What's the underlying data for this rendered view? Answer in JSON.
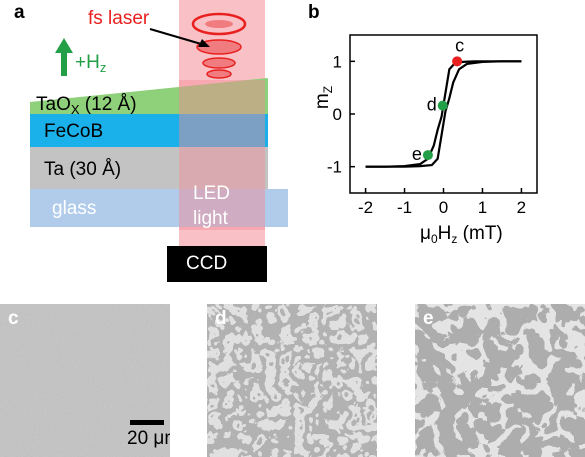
{
  "panel_a": {
    "letter": "a",
    "laser_label": "fs laser",
    "field_label_main": "+H",
    "field_label_sub": "z",
    "layers": [
      {
        "label_main": "TaO",
        "label_sub": "X",
        "label_rest": " (12 Å)",
        "color": "#86cc70"
      },
      {
        "label_main": "FeCoB",
        "label_sub": "",
        "label_rest": "",
        "color": "#1ab0ea"
      },
      {
        "label_main": "Ta (30 Å)",
        "label_sub": "",
        "label_rest": "",
        "color": "#c3c3c3"
      },
      {
        "label_main": "glass",
        "label_sub": "",
        "label_rest": "",
        "color": "#a8c6e8"
      }
    ],
    "light_label_line1": "LED",
    "light_label_line2": "light",
    "detector_label": "CCD",
    "colors": {
      "beam": "#f4a0a6",
      "laser_text": "#e8201f",
      "arrow": "#23a047",
      "ccd": "#000000"
    }
  },
  "panel_b": {
    "letter": "b",
    "chart_data": {
      "type": "line",
      "title": "",
      "xlabel_prefix": "μ",
      "xlabel_sub1": "0",
      "xlabel_mid": "H",
      "xlabel_sub2": "z",
      "xlabel_suffix": " (mT)",
      "ylabel_main": "m",
      "ylabel_sub": "Z",
      "xlim": [
        -2.4,
        2.4
      ],
      "ylim": [
        -1.5,
        1.5
      ],
      "xticks": [
        -2,
        -1,
        0,
        1,
        2
      ],
      "yticks": [
        -1,
        0,
        1
      ],
      "series": [
        {
          "values_x": [
            -2,
            -1.5,
            -1,
            -0.6,
            -0.4,
            -0.25,
            -0.15,
            -0.05,
            0.05,
            0.15,
            0.3,
            0.5,
            0.8,
            1.2,
            2
          ],
          "values_y": [
            -1,
            -1,
            -0.99,
            -0.95,
            -0.85,
            -0.6,
            -0.3,
            -0.05,
            0.4,
            0.85,
            0.97,
            0.99,
            1,
            1,
            1
          ]
        },
        {
          "values_x": [
            -2,
            -1.5,
            -1,
            -0.6,
            -0.3,
            -0.15,
            -0.05,
            0.05,
            0.15,
            0.25,
            0.4,
            0.6,
            1,
            1.5,
            2
          ],
          "values_y": [
            -1,
            -1,
            -1,
            -0.99,
            -0.97,
            -0.85,
            -0.4,
            0.05,
            0.3,
            0.6,
            0.85,
            0.95,
            0.99,
            1,
            1
          ]
        }
      ],
      "points": [
        {
          "label": "c",
          "x": 0.35,
          "y": 1.0,
          "color": "#e8201f"
        },
        {
          "label": "d",
          "x": -0.02,
          "y": 0.16,
          "color": "#23a047"
        },
        {
          "label": "e",
          "x": -0.4,
          "y": -0.78,
          "color": "#23a047"
        }
      ]
    }
  },
  "micrographs": [
    {
      "letter": "c",
      "scale_bar_label": "20 μm"
    },
    {
      "letter": "d"
    },
    {
      "letter": "e"
    }
  ]
}
